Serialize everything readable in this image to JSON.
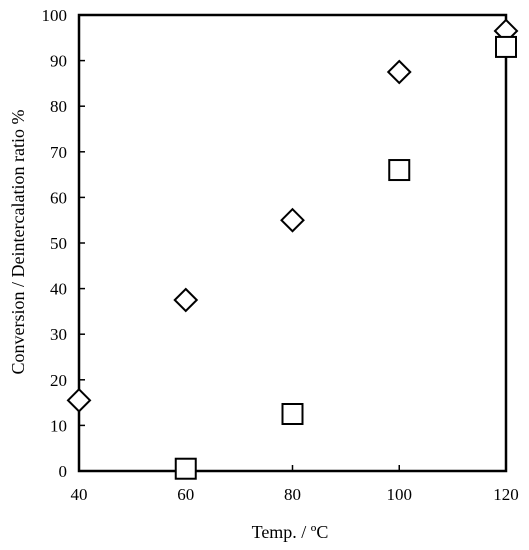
{
  "chart_data": {
    "type": "scatter",
    "title": "",
    "xlabel": "Temp. / ºC",
    "ylabel": "Conversion / Deintercalation ratio %",
    "xlim": [
      40,
      120
    ],
    "ylim": [
      0,
      100
    ],
    "xticks": [
      40,
      60,
      80,
      100,
      120
    ],
    "yticks": [
      0,
      10,
      20,
      30,
      40,
      50,
      60,
      70,
      80,
      90,
      100
    ],
    "grid": false,
    "legend": "none",
    "series": [
      {
        "marker": "diamond",
        "color": "#000000",
        "points": [
          {
            "x": 40,
            "y": 15.5
          },
          {
            "x": 60,
            "y": 37.5
          },
          {
            "x": 80,
            "y": 55
          },
          {
            "x": 100,
            "y": 87.5
          },
          {
            "x": 120,
            "y": 96.5
          }
        ]
      },
      {
        "marker": "square",
        "color": "#000000",
        "points": [
          {
            "x": 60,
            "y": 0.5
          },
          {
            "x": 80,
            "y": 12.5
          },
          {
            "x": 100,
            "y": 66
          },
          {
            "x": 120,
            "y": 93
          }
        ]
      }
    ]
  }
}
